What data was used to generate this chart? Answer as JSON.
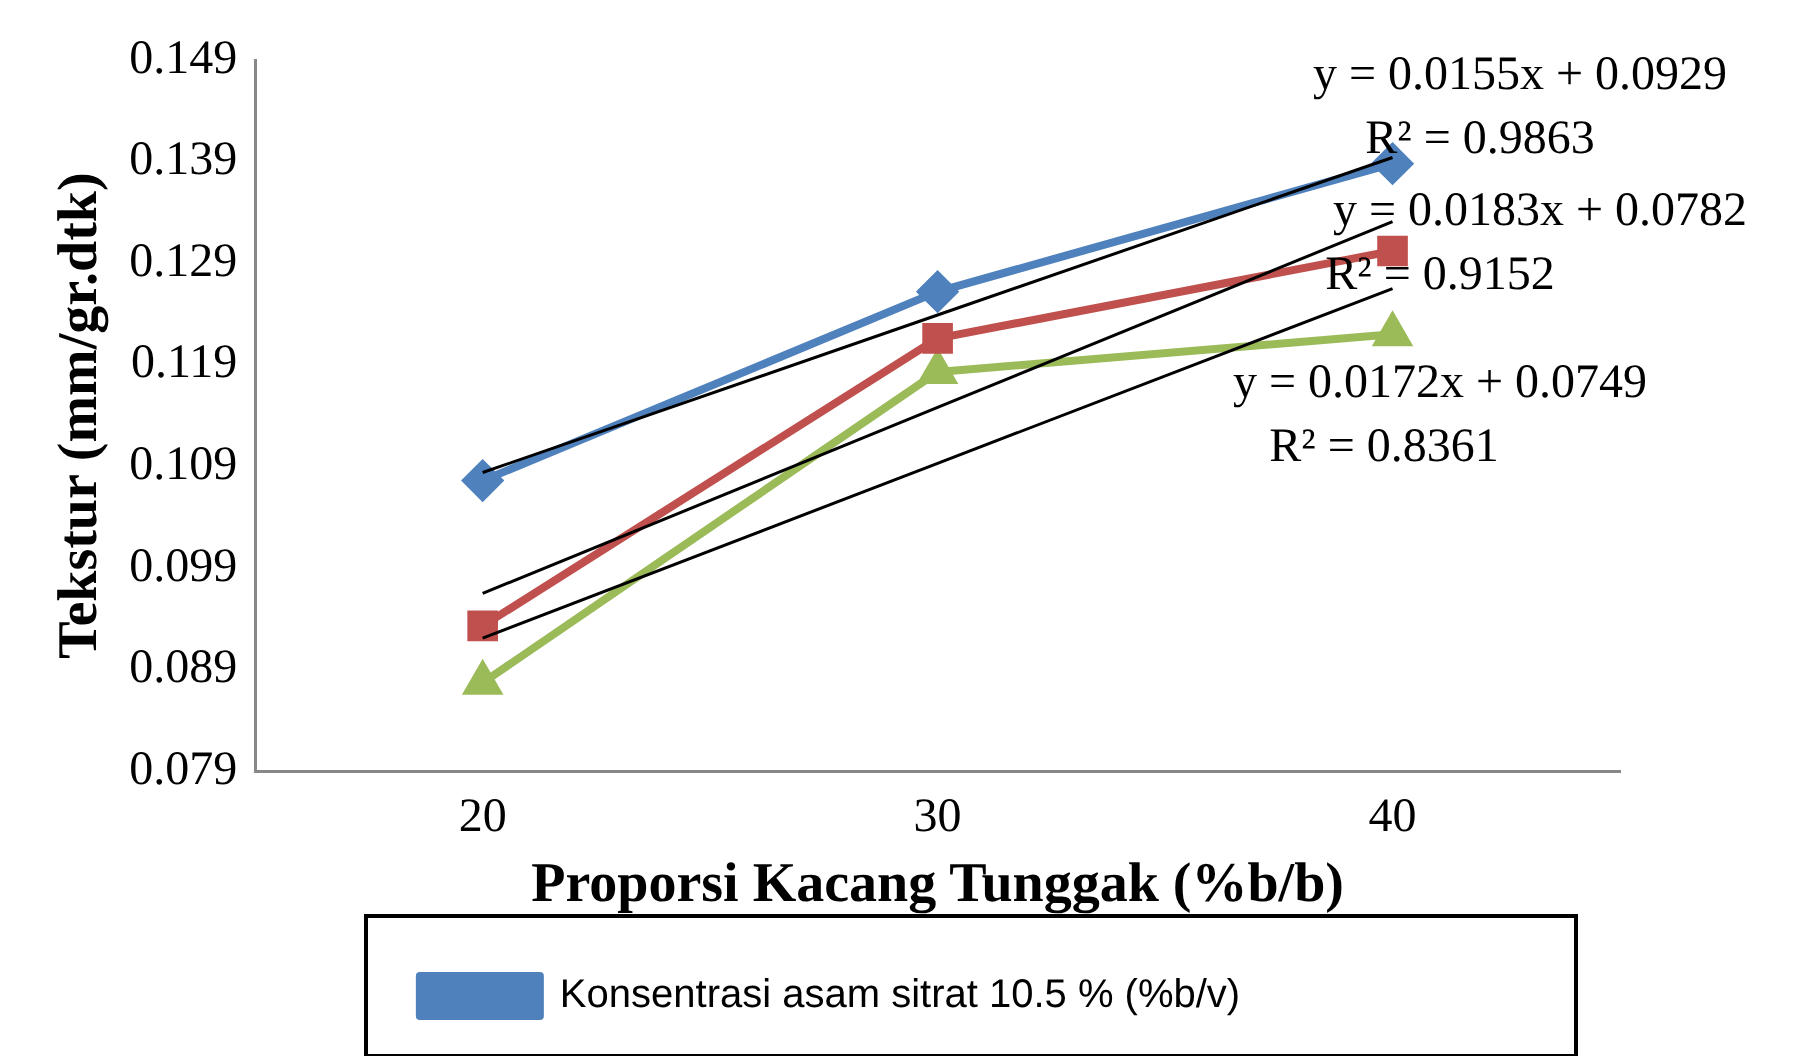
{
  "chart_data": {
    "type": "line",
    "xlabel": "Proporsi Kacang Tunggak (%b/b)",
    "ylabel": "Tekstur (mm/gr.dtk)",
    "categories": [
      "20",
      "30",
      "40"
    ],
    "series": [
      {
        "name": "Konsentrasi asam sitrat 10.5 % (%b/v)",
        "color": "#4f81bd",
        "marker": "diamond",
        "values": [
          0.1076,
          0.1262,
          0.1388
        ]
      },
      {
        "color": "#c0504d",
        "marker": "square",
        "values": [
          0.0933,
          0.1216,
          0.1302
        ]
      },
      {
        "color": "#9bbb59",
        "marker": "triangle",
        "values": [
          0.0877,
          0.1183,
          0.122
        ]
      },
      {
        "color": "#000000",
        "marker": "none",
        "values": [
          0.1084,
          0.1239,
          0.1394
        ]
      },
      {
        "color": "#000000",
        "marker": "none",
        "values": [
          0.0965,
          0.1148,
          0.1331
        ]
      },
      {
        "color": "#000000",
        "marker": "none",
        "values": [
          0.0921,
          0.1093,
          0.1265
        ]
      }
    ],
    "ylim": [
      0.079,
      0.149
    ],
    "yticks": [
      0.079,
      0.089,
      0.099,
      0.109,
      0.119,
      0.129,
      0.139,
      0.149
    ],
    "grid": false,
    "legend": "bottom",
    "annotations": [
      "y = 0.0155x + 0.0929",
      "R² = 0.9863",
      "y = 0.0183x + 0.0782",
      "R² = 0.9152",
      "y = 0.0172x + 0.0749",
      "R² = 0.8361"
    ]
  }
}
